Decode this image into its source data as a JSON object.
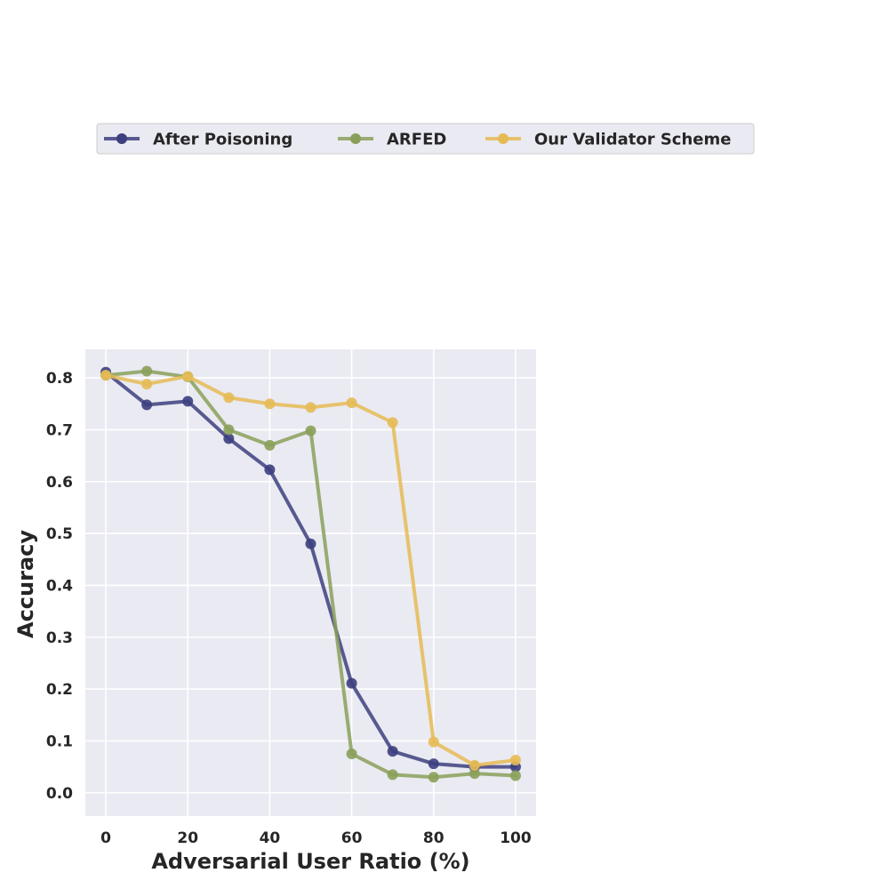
{
  "chart_data": {
    "type": "line",
    "xlabel": "Adversarial User Ratio (%)",
    "ylabel": "Accuracy",
    "x": [
      0,
      10,
      20,
      30,
      40,
      50,
      60,
      70,
      80,
      90,
      100
    ],
    "xlim": [
      -5,
      105
    ],
    "ylim": [
      -0.045,
      0.855
    ],
    "xticks": [
      0,
      20,
      40,
      60,
      80,
      100
    ],
    "xtick_labels": [
      "0",
      "20",
      "40",
      "60",
      "80",
      "100"
    ],
    "yticks": [
      0.0,
      0.1,
      0.2,
      0.3,
      0.4,
      0.5,
      0.6,
      0.7,
      0.8
    ],
    "ytick_labels": [
      "0.0",
      "0.1",
      "0.2",
      "0.3",
      "0.4",
      "0.5",
      "0.6",
      "0.7",
      "0.8"
    ],
    "grid": true,
    "legend_position": "top, outside plot",
    "series": [
      {
        "name": "After Poisoning",
        "color": "#3d3f7f",
        "values": [
          0.811,
          0.748,
          0.755,
          0.683,
          0.623,
          0.48,
          0.211,
          0.08,
          0.056,
          0.05,
          0.05
        ]
      },
      {
        "name": "ARFED",
        "color": "#8aa05a",
        "values": [
          0.805,
          0.813,
          0.802,
          0.7,
          0.67,
          0.698,
          0.075,
          0.035,
          0.03,
          0.037,
          0.033
        ]
      },
      {
        "name": "Our Validator Scheme",
        "color": "#e6bb55",
        "values": [
          0.805,
          0.788,
          0.803,
          0.762,
          0.75,
          0.743,
          0.752,
          0.714,
          0.098,
          0.053,
          0.063
        ]
      }
    ]
  }
}
